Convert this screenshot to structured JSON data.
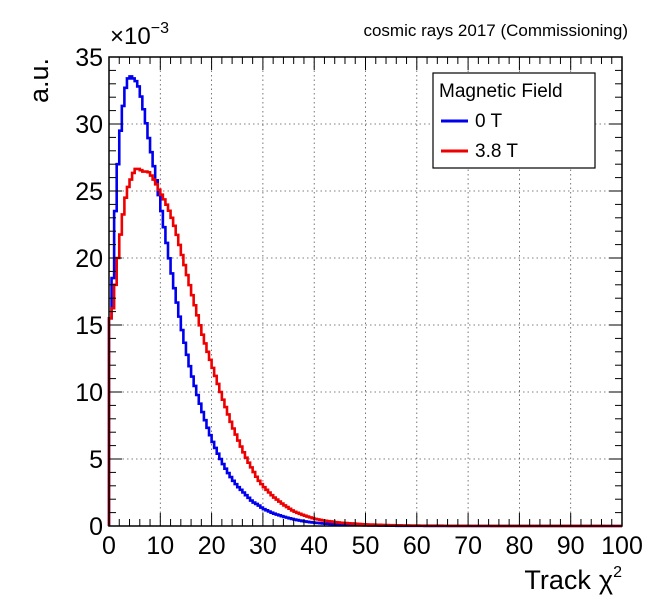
{
  "chart_data": {
    "type": "line",
    "title": "cosmic rays 2017 (Commissioning)",
    "xlabel": "Track",
    "xlabel_symbol": "χ",
    "xlabel_sup": "2",
    "ylabel": "a.u.",
    "y_multiplier": "×10",
    "y_multiplier_exp": "−3",
    "xlim": [
      0,
      100
    ],
    "ylim": [
      0,
      35
    ],
    "x_ticks": [
      0,
      10,
      20,
      30,
      40,
      50,
      60,
      70,
      80,
      90,
      100
    ],
    "y_ticks": [
      0,
      5,
      10,
      15,
      20,
      25,
      30,
      35
    ],
    "grid": true,
    "legend": {
      "title": "Magnetic Field",
      "position": "top-right"
    },
    "series": [
      {
        "name": "0 T",
        "color": "#0000ee",
        "points": [
          [
            0,
            0
          ],
          [
            0.5,
            15.5
          ],
          [
            1,
            21.5
          ],
          [
            1.5,
            25.5
          ],
          [
            2,
            28.5
          ],
          [
            2.5,
            30.5
          ],
          [
            3,
            32.2
          ],
          [
            3.5,
            33.2
          ],
          [
            4,
            33.6
          ],
          [
            4.5,
            33.5
          ],
          [
            5,
            33.3
          ],
          [
            5.5,
            33.1
          ],
          [
            6,
            32.5
          ],
          [
            6.5,
            31.6
          ],
          [
            7,
            30.6
          ],
          [
            7.5,
            29.5
          ],
          [
            8,
            28.4
          ],
          [
            8.5,
            27.4
          ],
          [
            9,
            26.3
          ],
          [
            9.5,
            25.3
          ],
          [
            10,
            24.1
          ],
          [
            11,
            21.7
          ],
          [
            12,
            19.4
          ],
          [
            13,
            17.2
          ],
          [
            14,
            15.1
          ],
          [
            15,
            13.2
          ],
          [
            16,
            11.5
          ],
          [
            17,
            10.1
          ],
          [
            18,
            8.8
          ],
          [
            19,
            7.6
          ],
          [
            20,
            6.5
          ],
          [
            21,
            5.6
          ],
          [
            22,
            4.8
          ],
          [
            23,
            4.1
          ],
          [
            24,
            3.5
          ],
          [
            25,
            3.0
          ],
          [
            26,
            2.6
          ],
          [
            27,
            2.2
          ],
          [
            28,
            1.8
          ],
          [
            29,
            1.6
          ],
          [
            30,
            1.3
          ],
          [
            32,
            0.95
          ],
          [
            34,
            0.7
          ],
          [
            36,
            0.5
          ],
          [
            38,
            0.35
          ],
          [
            40,
            0.25
          ],
          [
            42,
            0.18
          ],
          [
            45,
            0.1
          ],
          [
            50,
            0.05
          ],
          [
            55,
            0.02
          ],
          [
            60,
            0.01
          ],
          [
            70,
            0.0
          ],
          [
            100,
            0.0
          ]
        ]
      },
      {
        "name": "3.8 T",
        "color": "#ee0000",
        "points": [
          [
            0,
            0
          ],
          [
            0.5,
            15.5
          ],
          [
            1,
            17.0
          ],
          [
            1.5,
            19.0
          ],
          [
            2,
            21.0
          ],
          [
            2.5,
            22.5
          ],
          [
            3,
            24.0
          ],
          [
            3.5,
            25.0
          ],
          [
            4,
            25.6
          ],
          [
            4.5,
            26.1
          ],
          [
            5,
            26.6
          ],
          [
            5.5,
            26.7
          ],
          [
            6,
            26.6
          ],
          [
            6.5,
            26.5
          ],
          [
            7,
            26.4
          ],
          [
            7.5,
            26.5
          ],
          [
            8,
            26.3
          ],
          [
            8.5,
            26.0
          ],
          [
            9,
            25.7
          ],
          [
            9.5,
            25.3
          ],
          [
            10,
            24.9
          ],
          [
            11,
            24.2
          ],
          [
            12,
            23.3
          ],
          [
            13,
            22.1
          ],
          [
            14,
            20.6
          ],
          [
            15,
            19.1
          ],
          [
            16,
            17.6
          ],
          [
            17,
            16.1
          ],
          [
            18,
            14.6
          ],
          [
            19,
            13.3
          ],
          [
            20,
            12.1
          ],
          [
            21,
            10.9
          ],
          [
            22,
            9.7
          ],
          [
            23,
            8.6
          ],
          [
            24,
            7.5
          ],
          [
            25,
            6.6
          ],
          [
            26,
            5.7
          ],
          [
            27,
            4.9
          ],
          [
            28,
            4.2
          ],
          [
            29,
            3.5
          ],
          [
            30,
            3.0
          ],
          [
            32,
            2.2
          ],
          [
            34,
            1.6
          ],
          [
            36,
            1.1
          ],
          [
            38,
            0.8
          ],
          [
            40,
            0.55
          ],
          [
            42,
            0.4
          ],
          [
            45,
            0.25
          ],
          [
            50,
            0.12
          ],
          [
            55,
            0.06
          ],
          [
            60,
            0.03
          ],
          [
            70,
            0.01
          ],
          [
            100,
            0.0
          ]
        ]
      }
    ]
  }
}
